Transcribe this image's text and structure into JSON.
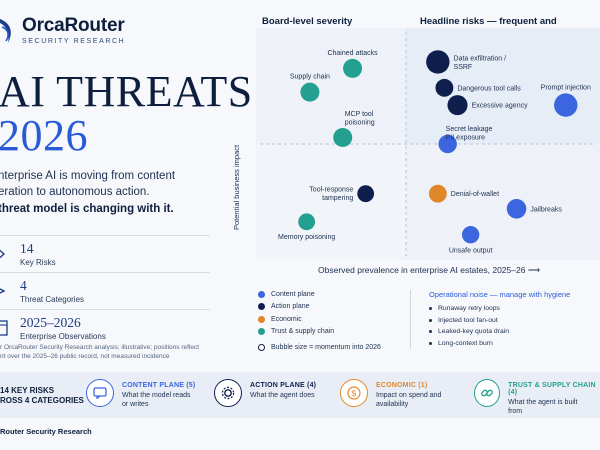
{
  "brand": {
    "name": "OrcaRouter",
    "sub": "SECURITY RESEARCH"
  },
  "headline": {
    "line1": "AI THREATS",
    "line2": "2026"
  },
  "lede": {
    "line1": "nterprise AI is moving from content",
    "line2": "eration to autonomous action.",
    "strong": "threat model is changing with it."
  },
  "stats": [
    {
      "num": "14",
      "label": "Key Risks",
      "icon": "key-icon"
    },
    {
      "num": "4",
      "label": "Threat Categories",
      "icon": "layers-icon"
    },
    {
      "num": "2025–2026",
      "label": "Enterprise Observations",
      "icon": "calendar-icon"
    }
  ],
  "footnote": {
    "line1": "r OrcaRouter Security Research analysis; illustrative; positions reflect",
    "line2": "nt over the 2025–26 public record, not measured incidence"
  },
  "chart_data": {
    "type": "scatter",
    "title_left": "Board-level severity",
    "title_right": "Headline risks — frequent and damaging",
    "xlabel": "Observed prevalence in enterprise AI estates, 2025–26",
    "ylabel": "Potential business impact",
    "xlim": [
      0,
      1
    ],
    "ylim": [
      0,
      1
    ],
    "points": [
      {
        "name": "Chained attacks",
        "x": 0.27,
        "y": 0.85,
        "size": 1,
        "cat": "trust",
        "lx": "above"
      },
      {
        "name": "Supply chain",
        "x": 0.14,
        "y": 0.74,
        "size": 1,
        "cat": "trust",
        "lx": "above"
      },
      {
        "name": "MCP tool\npoisoning",
        "x": 0.24,
        "y": 0.53,
        "size": 1,
        "cat": "trust",
        "lx": "above-right"
      },
      {
        "name": "Tool-response\ntampering",
        "x": 0.31,
        "y": 0.27,
        "size": 0.8,
        "cat": "action",
        "lx": "left"
      },
      {
        "name": "Memory poisoning",
        "x": 0.13,
        "y": 0.14,
        "size": 0.8,
        "cat": "trust",
        "lx": "below"
      },
      {
        "name": "Data exfiltration /\nSSRF",
        "x": 0.53,
        "y": 0.88,
        "size": 1.4,
        "cat": "action",
        "lx": "right"
      },
      {
        "name": "Dangerous tool calls",
        "x": 0.55,
        "y": 0.76,
        "size": 0.9,
        "cat": "action",
        "lx": "right"
      },
      {
        "name": "Excessive agency",
        "x": 0.59,
        "y": 0.68,
        "size": 1.1,
        "cat": "action",
        "lx": "right"
      },
      {
        "name": "Prompt injection",
        "x": 0.92,
        "y": 0.68,
        "size": 1.4,
        "cat": "content",
        "lx": "above"
      },
      {
        "name": "Secret leakage\nPII exposure",
        "x": 0.56,
        "y": 0.5,
        "size": 0.95,
        "cat": "content",
        "lx": "right-top"
      },
      {
        "name": "Denial-of-wallet",
        "x": 0.53,
        "y": 0.27,
        "size": 0.9,
        "cat": "economic",
        "lx": "right"
      },
      {
        "name": "Jailbreaks",
        "x": 0.77,
        "y": 0.2,
        "size": 1.05,
        "cat": "content",
        "lx": "right"
      },
      {
        "name": "Unsafe output",
        "x": 0.63,
        "y": 0.08,
        "size": 0.85,
        "cat": "content",
        "lx": "below"
      }
    ]
  },
  "legend": {
    "items": [
      {
        "label": "Content plane",
        "color": "#3b66e0"
      },
      {
        "label": "Action plane",
        "color": "#0f1f4d"
      },
      {
        "label": "Economic",
        "color": "#e0872a"
      },
      {
        "label": "Trust & supply chain",
        "color": "#23a08f"
      }
    ],
    "bubble_note": "Bubble size = momentum into 2026"
  },
  "noise": {
    "title": "Operational noise — manage with hygiene",
    "items": [
      "Runaway retry loops",
      "Injected tool fan-out",
      "Leaked-key quota drain",
      "Long-context burn"
    ]
  },
  "colors": {
    "content": "#3b66e0",
    "action": "#0f1f4d",
    "economic": "#e0872a",
    "trust": "#23a08f"
  },
  "band": {
    "lead1": "14 KEY RISKS",
    "lead2": "ROSS 4 CATEGORIES",
    "cats": [
      {
        "title": "CONTENT PLANE (5)",
        "desc": "What the model reads or writes",
        "color": "#3b66e0",
        "icon": "chat-icon"
      },
      {
        "title": "ACTION PLANE (4)",
        "desc": "What the agent does",
        "color": "#0f1f4d",
        "icon": "gear-icon"
      },
      {
        "title": "ECONOMIC (1)",
        "desc": "Impact on spend and availability",
        "color": "#e0872a",
        "icon": "dollar-icon"
      },
      {
        "title": "TRUST & SUPPLY CHAIN (4)",
        "desc": "What the agent is built from",
        "color": "#23a08f",
        "icon": "link-icon"
      }
    ]
  },
  "footer": "Router Security Research"
}
